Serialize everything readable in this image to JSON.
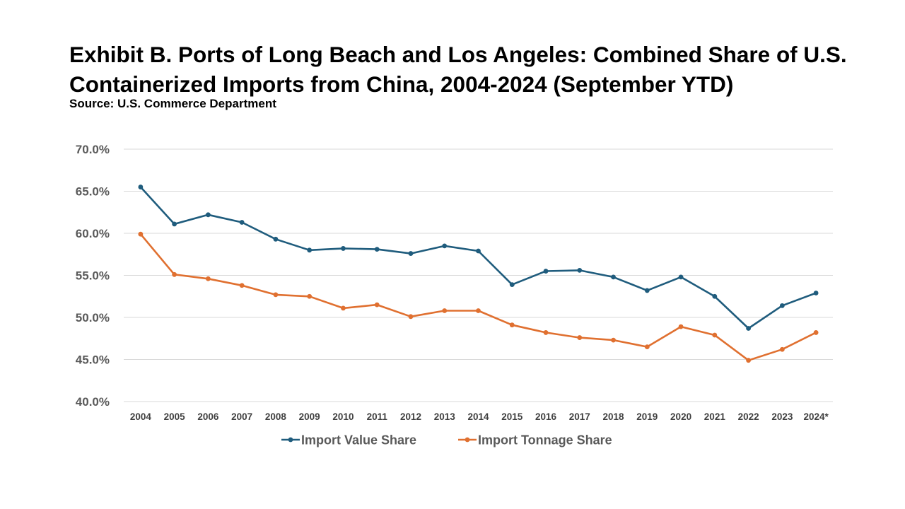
{
  "chart_data": {
    "type": "line",
    "title": "Exhibit B. Ports of Long Beach and Los Angeles: Combined Share of U.S. Containerized Imports from China, 2004-2024 (September YTD)",
    "subtitle": "Source: U.S. Commerce Department",
    "categories": [
      "2004",
      "2005",
      "2006",
      "2007",
      "2008",
      "2009",
      "2010",
      "2011",
      "2012",
      "2013",
      "2014",
      "2015",
      "2016",
      "2017",
      "2018",
      "2019",
      "2020",
      "2021",
      "2022",
      "2023",
      "2024*"
    ],
    "series": [
      {
        "name": "Import Value Share",
        "color": "#1f5c7d",
        "values": [
          65.5,
          61.1,
          62.2,
          61.3,
          59.3,
          58.0,
          58.2,
          58.1,
          57.6,
          58.5,
          57.9,
          53.9,
          55.5,
          55.6,
          54.8,
          53.2,
          54.8,
          52.5,
          48.7,
          51.4,
          52.9
        ]
      },
      {
        "name": "Import Tonnage Share",
        "color": "#e07030",
        "values": [
          59.9,
          55.1,
          54.6,
          53.8,
          52.7,
          52.5,
          51.1,
          51.5,
          50.1,
          50.8,
          50.8,
          49.1,
          48.2,
          47.6,
          47.3,
          46.5,
          48.9,
          47.9,
          44.9,
          46.2,
          48.2
        ]
      }
    ],
    "ylim": [
      40,
      70
    ],
    "yticks": [
      40,
      45,
      50,
      55,
      60,
      65,
      70
    ],
    "ytick_labels": [
      "40.0%",
      "45.0%",
      "50.0%",
      "55.0%",
      "60.0%",
      "65.0%",
      "70.0%"
    ],
    "grid": true,
    "gridline_color": "#d9d9d9",
    "legend_position": "bottom"
  }
}
